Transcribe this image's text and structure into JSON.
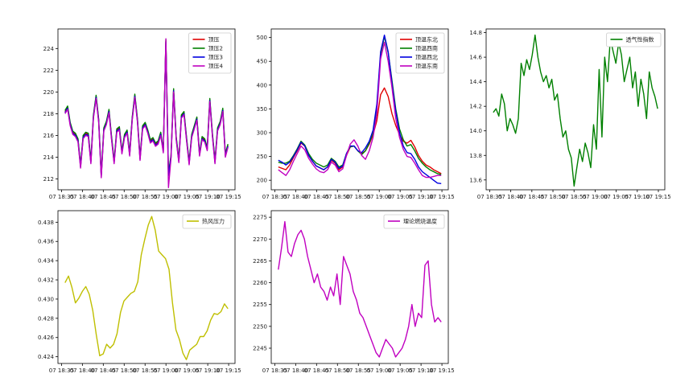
{
  "figure": {
    "background": "#ffffff"
  },
  "chart_data": [
    {
      "type": "line",
      "x_ticks": [
        "07 18:35",
        "07 18:40",
        "07 18:45",
        "07 18:50",
        "07 18:55",
        "07 19:00",
        "07 19:05",
        "07 19:10",
        "07 19:15"
      ],
      "y_ticks": [
        "212",
        "214",
        "216",
        "218",
        "220",
        "222",
        "224"
      ],
      "ylim": [
        211,
        225.8
      ],
      "legend_position": "top-right",
      "series": [
        {
          "name": "顶压",
          "color": "#e00000",
          "values": [
            218.2,
            218.6,
            217.1,
            216.3,
            216.1,
            215.6,
            213.2,
            215.9,
            216.2,
            216.1,
            213.6,
            217.8,
            219.6,
            217.4,
            212.3,
            216.6,
            217.2,
            218.3,
            215.8,
            213.6,
            216.5,
            216.7,
            214.5,
            216.0,
            216.4,
            214.3,
            217.6,
            219.7,
            217.4,
            213.9,
            216.8,
            217.1,
            216.4,
            215.5,
            215.7,
            215.2,
            215.4,
            216.2,
            214.6,
            224.7,
            212.4,
            214.1,
            220.2,
            215.8,
            213.7,
            217.8,
            218.1,
            215.7,
            213.5,
            216.0,
            216.8,
            217.6,
            214.3,
            215.8,
            215.6,
            214.8,
            219.3,
            216.1,
            213.6,
            216.6,
            217.2,
            218.4,
            214.2,
            215.1
          ]
        },
        {
          "name": "顶压2",
          "color": "#008000",
          "values": [
            218.3,
            218.7,
            217.2,
            216.4,
            216.2,
            215.7,
            213.3,
            216.0,
            216.3,
            216.2,
            213.7,
            217.9,
            219.7,
            217.5,
            212.4,
            216.7,
            217.3,
            218.4,
            215.9,
            213.7,
            216.6,
            216.8,
            214.6,
            216.1,
            216.5,
            214.4,
            217.7,
            219.8,
            217.5,
            214.0,
            216.9,
            217.2,
            216.5,
            215.6,
            215.8,
            215.3,
            215.5,
            216.3,
            214.7,
            224.8,
            212.5,
            214.2,
            220.3,
            215.9,
            213.8,
            217.9,
            218.2,
            215.8,
            213.6,
            216.1,
            216.9,
            217.7,
            214.4,
            215.9,
            215.7,
            214.9,
            219.4,
            216.2,
            213.7,
            216.7,
            217.3,
            218.5,
            214.3,
            215.2
          ]
        },
        {
          "name": "顶压3",
          "color": "#0000e0",
          "values": [
            218.1,
            218.5,
            217.0,
            216.2,
            216.0,
            215.5,
            213.1,
            215.8,
            216.1,
            216.0,
            213.5,
            217.7,
            219.5,
            217.3,
            212.2,
            216.5,
            217.1,
            218.2,
            215.7,
            213.5,
            216.4,
            216.6,
            214.4,
            215.9,
            216.3,
            214.2,
            217.5,
            219.6,
            217.3,
            213.8,
            216.7,
            217.0,
            216.3,
            215.4,
            215.6,
            215.1,
            215.3,
            216.1,
            214.5,
            224.6,
            212.3,
            214.0,
            220.1,
            215.7,
            213.6,
            217.7,
            218.0,
            215.6,
            213.4,
            215.9,
            216.7,
            217.5,
            214.2,
            215.7,
            215.5,
            214.7,
            219.2,
            216.0,
            213.5,
            216.5,
            217.1,
            218.3,
            214.1,
            215.0
          ]
        },
        {
          "name": "顶压4",
          "color": "#c000c0",
          "values": [
            218.0,
            218.4,
            216.9,
            216.1,
            215.9,
            215.4,
            213.0,
            215.7,
            216.0,
            215.9,
            213.4,
            217.6,
            219.4,
            217.2,
            212.1,
            216.4,
            217.0,
            218.1,
            215.6,
            213.4,
            216.3,
            216.5,
            214.3,
            215.8,
            216.2,
            214.1,
            217.4,
            219.5,
            217.2,
            213.7,
            216.6,
            216.9,
            216.2,
            215.3,
            215.5,
            215.0,
            215.2,
            216.0,
            214.4,
            224.9,
            211.2,
            213.9,
            220.0,
            215.6,
            213.5,
            217.6,
            217.9,
            215.5,
            213.3,
            215.8,
            216.6,
            217.4,
            214.1,
            215.6,
            215.4,
            214.6,
            219.1,
            215.9,
            213.4,
            216.4,
            217.0,
            218.2,
            214.0,
            214.9
          ]
        }
      ]
    },
    {
      "type": "line",
      "x_ticks": [
        "07 18:35",
        "07 18:40",
        "07 18:45",
        "07 18:50",
        "07 18:55",
        "07 19:00",
        "07 19:05",
        "07 19:10",
        "07 19:15"
      ],
      "y_ticks": [
        "200",
        "250",
        "300",
        "350",
        "400",
        "450",
        "500"
      ],
      "ylim": [
        180,
        518
      ],
      "legend_position": "top-right",
      "series": [
        {
          "name": "顶温东北",
          "color": "#e00000",
          "values": [
            228,
            225,
            222,
            232,
            248,
            262,
            278,
            272,
            252,
            240,
            230,
            226,
            222,
            228,
            242,
            236,
            222,
            228,
            252,
            270,
            272,
            262,
            256,
            262,
            276,
            296,
            325,
            380,
            394,
            376,
            340,
            315,
            296,
            282,
            278,
            284,
            270,
            252,
            240,
            232,
            228,
            222,
            218,
            214
          ]
        },
        {
          "name": "顶温西南",
          "color": "#008000",
          "values": [
            238,
            236,
            236,
            240,
            252,
            266,
            282,
            274,
            256,
            244,
            236,
            232,
            228,
            232,
            246,
            240,
            228,
            232,
            256,
            270,
            272,
            262,
            254,
            262,
            278,
            300,
            350,
            465,
            502,
            468,
            410,
            350,
            308,
            285,
            272,
            275,
            262,
            246,
            236,
            228,
            222,
            218,
            214,
            212
          ]
        },
        {
          "name": "顶温西北",
          "color": "#0000e0",
          "values": [
            242,
            238,
            232,
            238,
            250,
            264,
            280,
            272,
            252,
            240,
            230,
            226,
            222,
            228,
            244,
            238,
            225,
            230,
            256,
            272,
            272,
            262,
            258,
            268,
            282,
            305,
            360,
            470,
            505,
            470,
            405,
            345,
            300,
            272,
            258,
            256,
            244,
            228,
            218,
            212,
            206,
            200,
            194,
            193
          ]
        },
        {
          "name": "顶温东南",
          "color": "#c000c0",
          "values": [
            222,
            216,
            210,
            222,
            240,
            256,
            272,
            264,
            246,
            234,
            224,
            218,
            216,
            222,
            238,
            232,
            218,
            224,
            252,
            276,
            285,
            272,
            252,
            244,
            262,
            290,
            340,
            455,
            490,
            450,
            395,
            330,
            290,
            265,
            250,
            248,
            236,
            222,
            210,
            206,
            206,
            208,
            210,
            210
          ]
        }
      ]
    },
    {
      "type": "line",
      "x_ticks": [
        "07 18:35",
        "07 18:40",
        "07 18:45",
        "07 18:50",
        "07 18:55",
        "07 19:00",
        "07 19:05",
        "07 19:10",
        "07 19:15"
      ],
      "y_ticks": [
        "13.6",
        "13.8",
        "14.0",
        "14.2",
        "14.4",
        "14.6",
        "14.8"
      ],
      "ylim": [
        13.52,
        14.83
      ],
      "legend_position": "top-right",
      "series": [
        {
          "name": "透气性指数",
          "color": "#008000",
          "values": [
            14.15,
            14.18,
            14.12,
            14.3,
            14.22,
            14.0,
            14.1,
            14.05,
            13.98,
            14.1,
            14.55,
            14.45,
            14.58,
            14.5,
            14.62,
            14.78,
            14.6,
            14.48,
            14.4,
            14.45,
            14.35,
            14.42,
            14.25,
            14.3,
            14.1,
            13.95,
            14.0,
            13.85,
            13.78,
            13.55,
            13.7,
            13.85,
            13.75,
            13.9,
            13.82,
            13.7,
            14.05,
            13.85,
            14.5,
            13.95,
            14.6,
            14.4,
            14.75,
            14.65,
            14.55,
            14.72,
            14.62,
            14.4,
            14.5,
            14.6,
            14.35,
            14.48,
            14.2,
            14.42,
            14.3,
            14.1,
            14.48,
            14.35,
            14.28,
            14.18
          ]
        }
      ]
    },
    {
      "type": "line",
      "x_ticks": [
        "07 18:35",
        "07 18:40",
        "07 18:45",
        "07 18:50",
        "07 18:55",
        "07 19:00",
        "07 19:05",
        "07 19:10",
        "07 19:15"
      ],
      "y_ticks": [
        "0.424",
        "0.426",
        "0.428",
        "0.430",
        "0.432",
        "0.434",
        "0.436",
        "0.438"
      ],
      "ylim": [
        0.4233,
        0.4392
      ],
      "legend_position": "top-right",
      "series": [
        {
          "name": "热风压力",
          "color": "#bfbf00",
          "values": [
            0.4317,
            0.4324,
            0.4312,
            0.4296,
            0.4301,
            0.4308,
            0.4313,
            0.4305,
            0.4288,
            0.4263,
            0.4241,
            0.4243,
            0.4253,
            0.4249,
            0.4253,
            0.4264,
            0.4286,
            0.4298,
            0.4302,
            0.4306,
            0.4308,
            0.4318,
            0.4346,
            0.4362,
            0.4377,
            0.4386,
            0.4372,
            0.435,
            0.4346,
            0.4342,
            0.4331,
            0.4296,
            0.4268,
            0.4258,
            0.4244,
            0.4237,
            0.4247,
            0.425,
            0.4253,
            0.4261,
            0.4261,
            0.4267,
            0.4278,
            0.4285,
            0.4284,
            0.4287,
            0.4295,
            0.429
          ]
        }
      ]
    },
    {
      "type": "line",
      "x_ticks": [
        "07 18:35",
        "07 18:40",
        "07 18:45",
        "07 18:50",
        "07 18:55",
        "07 19:00",
        "07 19:05",
        "07 19:10",
        "07 19:15"
      ],
      "y_ticks": [
        "2245",
        "2250",
        "2255",
        "2260",
        "2265",
        "2270",
        "2275"
      ],
      "ylim": [
        2241.5,
        2276.5
      ],
      "legend_position": "top-right",
      "series": [
        {
          "name": "理论燃烧温度",
          "color": "#c000c0",
          "values": [
            2263,
            2268,
            2274,
            2267,
            2266,
            2269,
            2271,
            2272,
            2270,
            2266,
            2263,
            2260,
            2262,
            2259,
            2258,
            2256,
            2259,
            2257,
            2262,
            2255,
            2266,
            2264,
            2262,
            2258,
            2256,
            2253,
            2252,
            2250,
            2248,
            2246,
            2244,
            2243,
            2245,
            2247,
            2246,
            2245,
            2243,
            2244,
            2245,
            2247,
            2250,
            2255,
            2250,
            2253,
            2252,
            2264,
            2265,
            2255,
            2251,
            2252,
            2251
          ]
        }
      ]
    }
  ]
}
